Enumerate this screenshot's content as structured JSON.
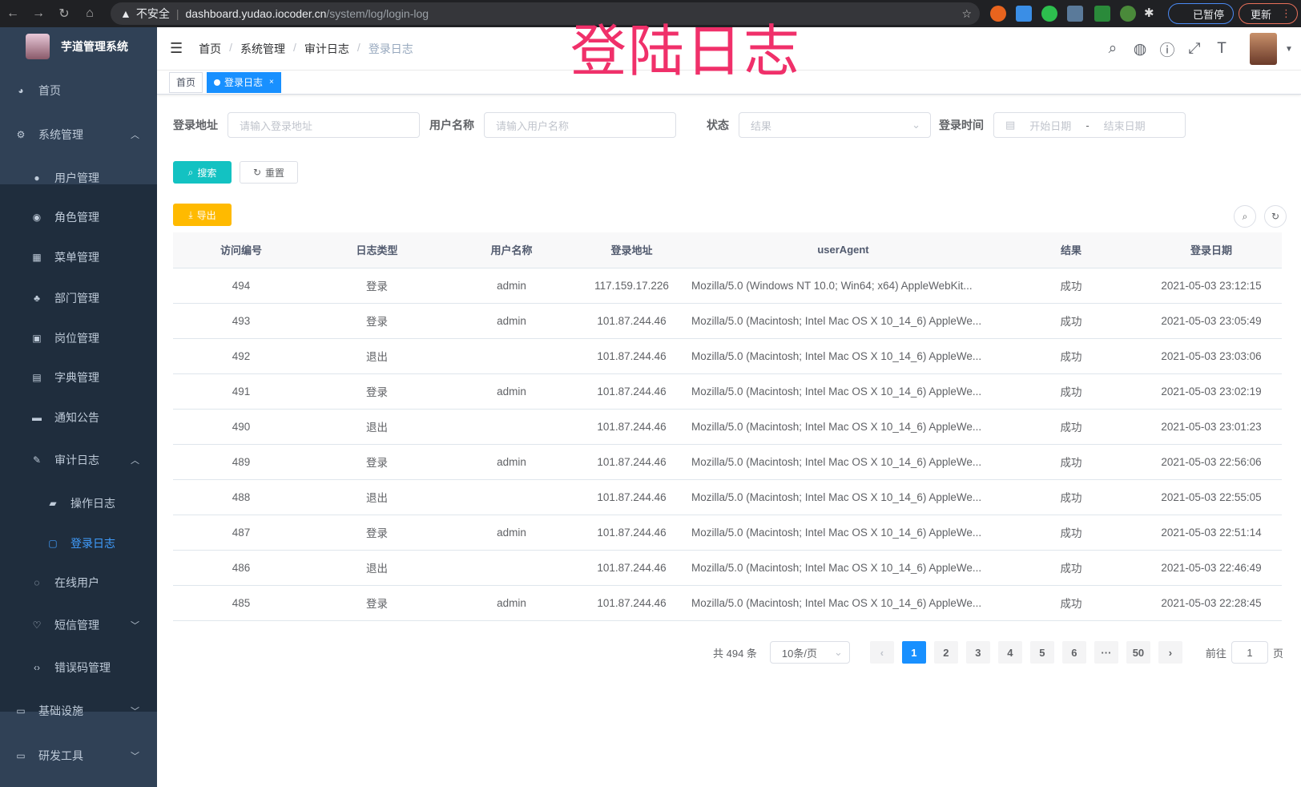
{
  "browser": {
    "url_warning": "不安全",
    "url_host": "dashboard.yudao.iocoder.cn",
    "url_path": "/system/log/login-log",
    "paused": "已暂停",
    "update": "更新"
  },
  "overlay_title": "登陆日志",
  "sidebar": {
    "title": "芋道管理系统",
    "items": [
      {
        "label": "首页",
        "icon": "dashboard-icon"
      },
      {
        "label": "系统管理",
        "icon": "gear-icon",
        "chevron": "up"
      },
      {
        "label": "用户管理",
        "icon": "user-icon"
      },
      {
        "label": "角色管理",
        "icon": "peoples-icon"
      },
      {
        "label": "菜单管理",
        "icon": "tree-table-icon"
      },
      {
        "label": "部门管理",
        "icon": "tree-icon"
      },
      {
        "label": "岗位管理",
        "icon": "post-icon"
      },
      {
        "label": "字典管理",
        "icon": "dict-icon"
      },
      {
        "label": "通知公告",
        "icon": "message-icon"
      },
      {
        "label": "审计日志",
        "icon": "log-icon",
        "chevron": "up"
      },
      {
        "label": "操作日志",
        "icon": "form-icon"
      },
      {
        "label": "登录日志",
        "icon": "logininfor-icon",
        "active": true
      },
      {
        "label": "在线用户",
        "icon": "online-icon"
      },
      {
        "label": "短信管理",
        "icon": "shield-icon",
        "chevron": "down"
      },
      {
        "label": "错误码管理",
        "icon": "code-icon"
      },
      {
        "label": "基础设施",
        "icon": "monitor-icon",
        "chevron": "down"
      },
      {
        "label": "研发工具",
        "icon": "tool-icon",
        "chevron": "down"
      }
    ]
  },
  "breadcrumb": [
    "首页",
    "系统管理",
    "审计日志",
    "登录日志"
  ],
  "tags": [
    {
      "label": "首页"
    },
    {
      "label": "登录日志",
      "active": true
    }
  ],
  "filters": {
    "ip_label": "登录地址",
    "ip_placeholder": "请输入登录地址",
    "user_label": "用户名称",
    "user_placeholder": "请输入用户名称",
    "status_label": "状态",
    "status_placeholder": "结果",
    "time_label": "登录时间",
    "start_placeholder": "开始日期",
    "range_sep": "-",
    "end_placeholder": "结束日期"
  },
  "buttons": {
    "search": "搜索",
    "reset": "重置",
    "export": "导出"
  },
  "colors": {
    "sidebar_bg": "#304156",
    "submenu_bg": "#1f2d3d",
    "primary": "#1890ff",
    "search_btn": "#13c2c2",
    "export_btn": "#ffba00",
    "overlay": "#f0306a"
  },
  "table": {
    "columns": [
      "访问编号",
      "日志类型",
      "用户名称",
      "登录地址",
      "userAgent",
      "结果",
      "登录日期"
    ],
    "rows": [
      [
        "494",
        "登录",
        "admin",
        "117.159.17.226",
        "Mozilla/5.0 (Windows NT 10.0; Win64; x64) AppleWebKit...",
        "成功",
        "2021-05-03 23:12:15"
      ],
      [
        "493",
        "登录",
        "admin",
        "101.87.244.46",
        "Mozilla/5.0 (Macintosh; Intel Mac OS X 10_14_6) AppleWe...",
        "成功",
        "2021-05-03 23:05:49"
      ],
      [
        "492",
        "退出",
        "",
        "101.87.244.46",
        "Mozilla/5.0 (Macintosh; Intel Mac OS X 10_14_6) AppleWe...",
        "成功",
        "2021-05-03 23:03:06"
      ],
      [
        "491",
        "登录",
        "admin",
        "101.87.244.46",
        "Mozilla/5.0 (Macintosh; Intel Mac OS X 10_14_6) AppleWe...",
        "成功",
        "2021-05-03 23:02:19"
      ],
      [
        "490",
        "退出",
        "",
        "101.87.244.46",
        "Mozilla/5.0 (Macintosh; Intel Mac OS X 10_14_6) AppleWe...",
        "成功",
        "2021-05-03 23:01:23"
      ],
      [
        "489",
        "登录",
        "admin",
        "101.87.244.46",
        "Mozilla/5.0 (Macintosh; Intel Mac OS X 10_14_6) AppleWe...",
        "成功",
        "2021-05-03 22:56:06"
      ],
      [
        "488",
        "退出",
        "",
        "101.87.244.46",
        "Mozilla/5.0 (Macintosh; Intel Mac OS X 10_14_6) AppleWe...",
        "成功",
        "2021-05-03 22:55:05"
      ],
      [
        "487",
        "登录",
        "admin",
        "101.87.244.46",
        "Mozilla/5.0 (Macintosh; Intel Mac OS X 10_14_6) AppleWe...",
        "成功",
        "2021-05-03 22:51:14"
      ],
      [
        "486",
        "退出",
        "",
        "101.87.244.46",
        "Mozilla/5.0 (Macintosh; Intel Mac OS X 10_14_6) AppleWe...",
        "成功",
        "2021-05-03 22:46:49"
      ],
      [
        "485",
        "登录",
        "admin",
        "101.87.244.46",
        "Mozilla/5.0 (Macintosh; Intel Mac OS X 10_14_6) AppleWe...",
        "成功",
        "2021-05-03 22:28:45"
      ]
    ]
  },
  "pagination": {
    "total": "共 494 条",
    "page_size": "10条/页",
    "pages": [
      "1",
      "2",
      "3",
      "4",
      "5",
      "6",
      "···",
      "50"
    ],
    "current": "1",
    "goto_label": "前往",
    "goto_value": "1",
    "page_unit": "页"
  }
}
